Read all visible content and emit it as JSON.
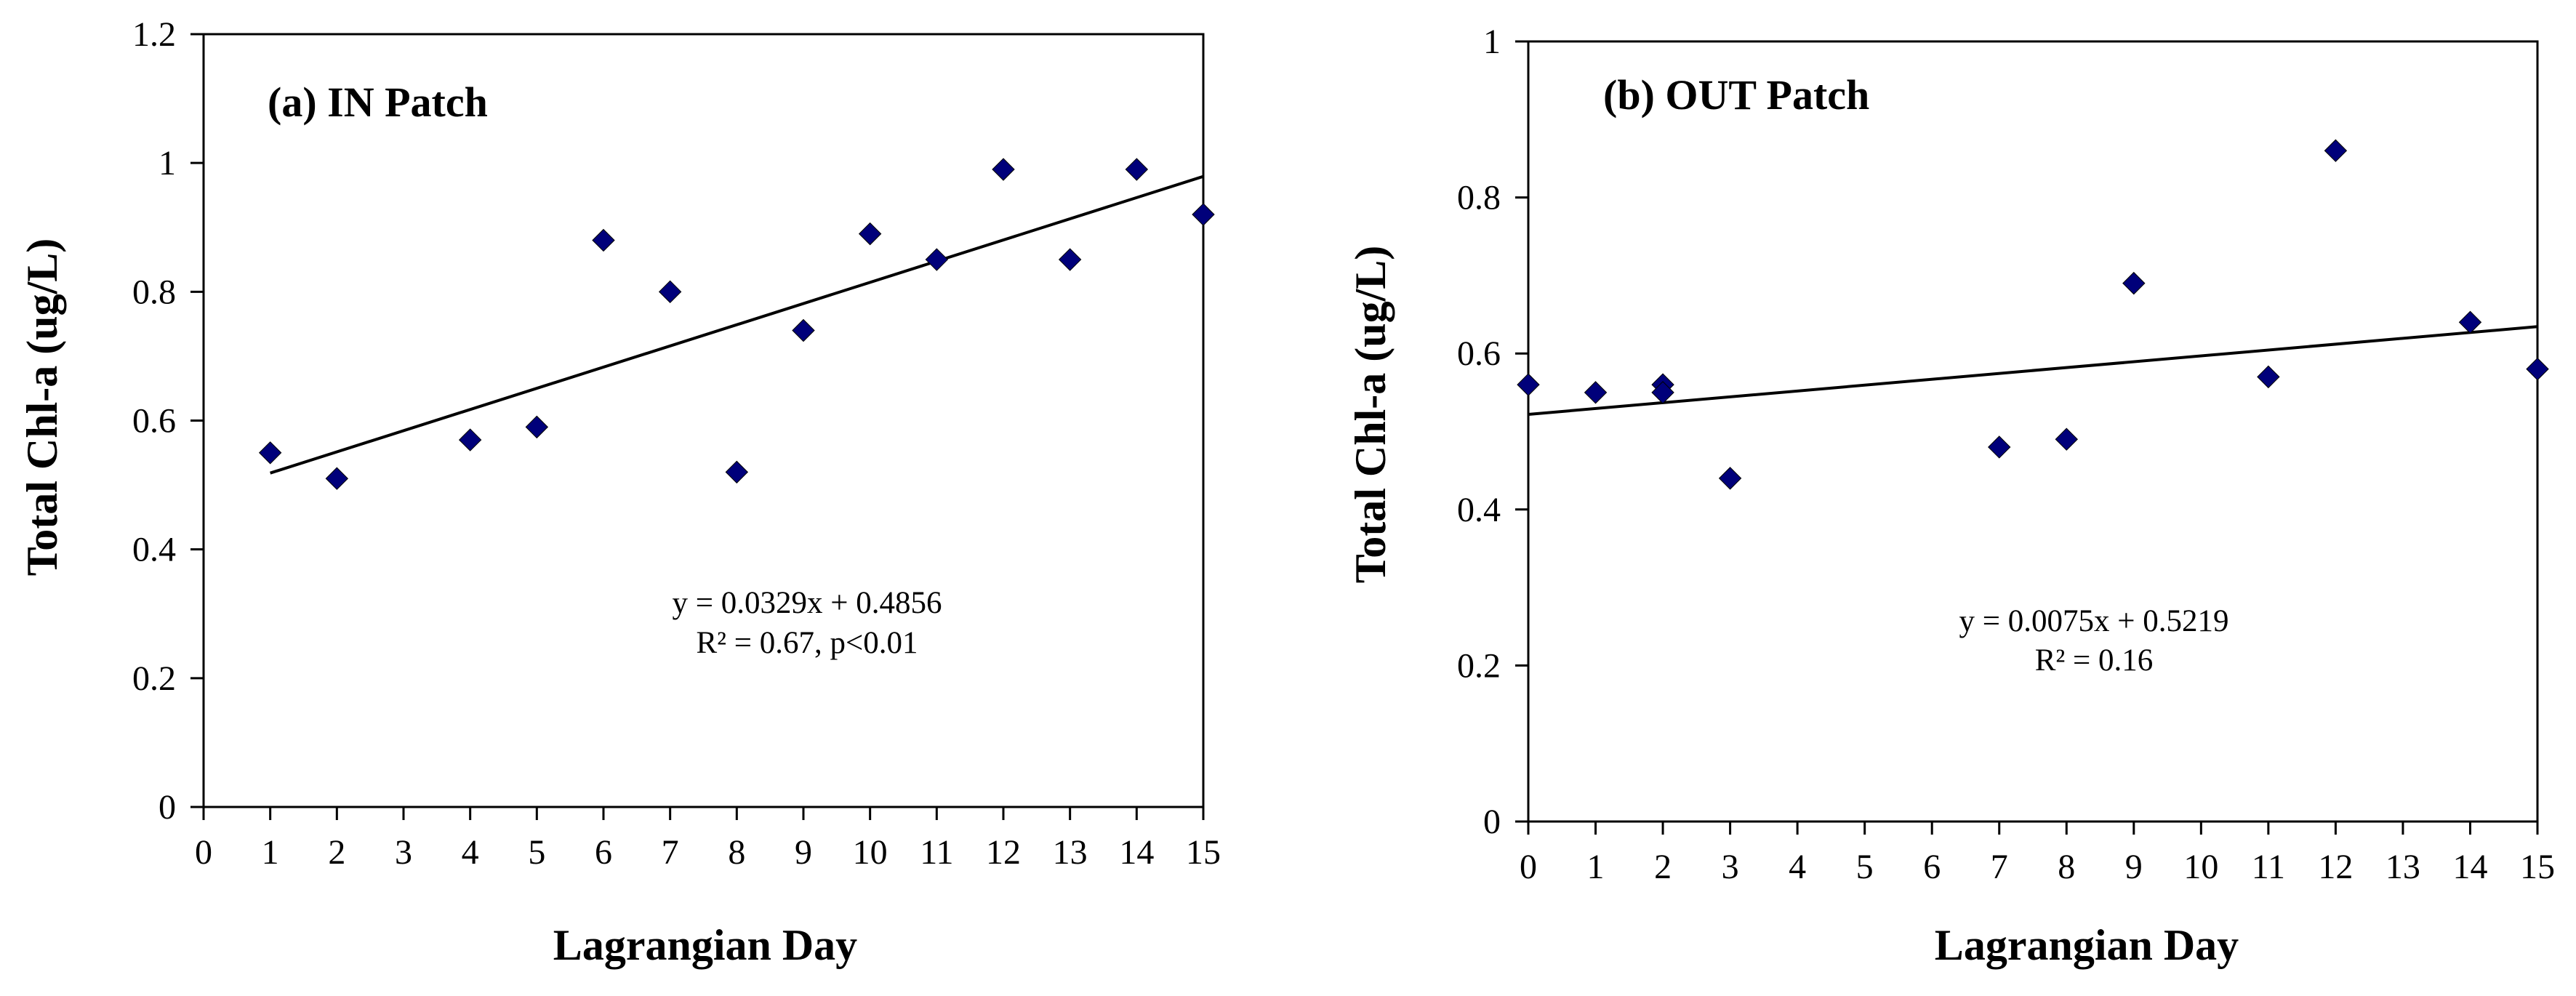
{
  "chart_data": [
    {
      "type": "scatter",
      "title": "(a) IN Patch",
      "xlabel": "Lagrangian Day",
      "ylabel": "Total Chl-a (ug/L)",
      "xlim": [
        0,
        15
      ],
      "ylim": [
        0,
        1.2
      ],
      "xticks": [
        0,
        1,
        2,
        3,
        4,
        5,
        6,
        7,
        8,
        9,
        10,
        11,
        12,
        13,
        14,
        15
      ],
      "yticks": [
        0,
        0.2,
        0.4,
        0.6,
        0.8,
        1,
        1.2
      ],
      "ytick_labels": [
        "0",
        "0.2",
        "0.4",
        "0.6",
        "0.8",
        "1",
        "1.2"
      ],
      "marker_color": "#00007A",
      "series": [
        {
          "name": "Total Chl-a",
          "x": [
            1,
            2,
            4,
            5,
            6,
            7,
            8,
            9,
            10,
            11,
            12,
            13,
            14,
            15
          ],
          "y": [
            0.55,
            0.51,
            0.57,
            0.59,
            0.88,
            0.8,
            0.52,
            0.74,
            0.89,
            0.85,
            0.99,
            0.85,
            0.99,
            0.92
          ]
        }
      ],
      "trendline": {
        "slope": 0.0329,
        "intercept": 0.4856,
        "x_range": [
          1,
          15
        ]
      },
      "equation": "y = 0.0329x + 0.4856",
      "stats": "R² = 0.67, p<0.01"
    },
    {
      "type": "scatter",
      "title": "(b) OUT Patch",
      "xlabel": "Lagrangian Day",
      "ylabel": "Total Chl-a (ug/L)",
      "xlim": [
        0,
        15
      ],
      "ylim": [
        0,
        1
      ],
      "xticks": [
        0,
        1,
        2,
        3,
        4,
        5,
        6,
        7,
        8,
        9,
        10,
        11,
        12,
        13,
        14,
        15
      ],
      "yticks": [
        0,
        0.2,
        0.4,
        0.6,
        0.8,
        1
      ],
      "ytick_labels": [
        "0",
        "0.2",
        "0.4",
        "0.6",
        "0.8",
        "1"
      ],
      "marker_color": "#00007A",
      "series": [
        {
          "name": "Total Chl-a",
          "x": [
            0,
            1,
            2,
            2,
            3,
            7,
            8,
            9,
            11,
            12,
            14,
            15
          ],
          "y": [
            0.56,
            0.55,
            0.56,
            0.55,
            0.44,
            0.48,
            0.49,
            0.69,
            0.57,
            0.86,
            0.64,
            0.58
          ]
        }
      ],
      "trendline": {
        "slope": 0.0075,
        "intercept": 0.5219,
        "x_range": [
          0,
          15
        ]
      },
      "equation": "y = 0.0075x + 0.5219",
      "stats": "R² = 0.16"
    }
  ]
}
